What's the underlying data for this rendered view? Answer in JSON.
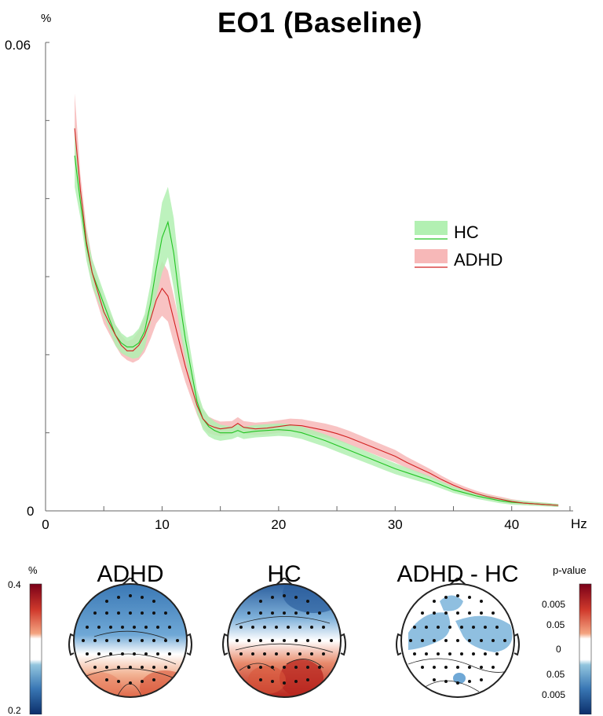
{
  "chart_data": {
    "type": "line",
    "title": "EO1 (Baseline)",
    "ylabel": "%",
    "xlabel": "Hz",
    "xlim": [
      0,
      45
    ],
    "ylim": [
      0,
      0.06
    ],
    "x_ticks": [
      "0",
      "10",
      "20",
      "30",
      "40"
    ],
    "y_tick_labels": [
      "0.06",
      "0"
    ],
    "legend_placement": "right",
    "series": [
      {
        "name": "HC",
        "color": "#22c422",
        "band_color": "#b2f0b2",
        "points": [
          [
            2.5,
            0.0455
          ],
          [
            3,
            0.0395
          ],
          [
            3.5,
            0.034
          ],
          [
            4,
            0.0305
          ],
          [
            4.5,
            0.0285
          ],
          [
            5,
            0.0265
          ],
          [
            5.5,
            0.0245
          ],
          [
            6,
            0.0225
          ],
          [
            6.5,
            0.0215
          ],
          [
            7,
            0.021
          ],
          [
            7.5,
            0.021
          ],
          [
            8,
            0.0215
          ],
          [
            8.5,
            0.023
          ],
          [
            9,
            0.0265
          ],
          [
            9.5,
            0.031
          ],
          [
            10,
            0.035
          ],
          [
            10.5,
            0.037
          ],
          [
            11,
            0.033
          ],
          [
            11.5,
            0.027
          ],
          [
            12,
            0.022
          ],
          [
            12.5,
            0.018
          ],
          [
            13,
            0.014
          ],
          [
            13.5,
            0.0118
          ],
          [
            14,
            0.0108
          ],
          [
            14.5,
            0.0103
          ],
          [
            15,
            0.01
          ],
          [
            16,
            0.01
          ],
          [
            16.5,
            0.0103
          ],
          [
            17,
            0.01
          ],
          [
            18,
            0.0102
          ],
          [
            19,
            0.0103
          ],
          [
            20,
            0.0104
          ],
          [
            21,
            0.0103
          ],
          [
            22,
            0.01
          ],
          [
            23,
            0.0095
          ],
          [
            24,
            0.009
          ],
          [
            25,
            0.0084
          ],
          [
            26,
            0.0078
          ],
          [
            27,
            0.0072
          ],
          [
            28,
            0.0066
          ],
          [
            29,
            0.006
          ],
          [
            30,
            0.0054
          ],
          [
            31,
            0.0049
          ],
          [
            32,
            0.0044
          ],
          [
            33,
            0.0039
          ],
          [
            34,
            0.0033
          ],
          [
            35,
            0.0027
          ],
          [
            36,
            0.0023
          ],
          [
            37,
            0.0019
          ],
          [
            38,
            0.0016
          ],
          [
            39,
            0.0013
          ],
          [
            40,
            0.0011
          ],
          [
            41,
            0.001
          ],
          [
            42,
            0.0009
          ],
          [
            43,
            0.0008
          ],
          [
            44,
            0.0007
          ]
        ],
        "band": [
          [
            2.5,
            0.004
          ],
          [
            3,
            0.002
          ],
          [
            5,
            0.0015
          ],
          [
            7,
            0.0012
          ],
          [
            9,
            0.0025
          ],
          [
            10,
            0.0045
          ],
          [
            11,
            0.0045
          ],
          [
            12,
            0.0025
          ],
          [
            13,
            0.0015
          ],
          [
            16,
            0.0008
          ],
          [
            20,
            0.0008
          ],
          [
            25,
            0.0008
          ],
          [
            30,
            0.0007
          ],
          [
            35,
            0.0004
          ],
          [
            40,
            0.0003
          ],
          [
            44,
            0.0002
          ]
        ]
      },
      {
        "name": "ADHD",
        "color": "#d22020",
        "band_color": "#f7b8b8",
        "points": [
          [
            2.5,
            0.049
          ],
          [
            3,
            0.041
          ],
          [
            3.5,
            0.0345
          ],
          [
            4,
            0.0305
          ],
          [
            4.5,
            0.028
          ],
          [
            5,
            0.0255
          ],
          [
            5.5,
            0.024
          ],
          [
            6,
            0.0225
          ],
          [
            6.5,
            0.0212
          ],
          [
            7,
            0.0205
          ],
          [
            7.5,
            0.0205
          ],
          [
            8,
            0.0212
          ],
          [
            8.5,
            0.0225
          ],
          [
            9,
            0.0245
          ],
          [
            9.5,
            0.027
          ],
          [
            10,
            0.0285
          ],
          [
            10.5,
            0.0275
          ],
          [
            11,
            0.0245
          ],
          [
            11.5,
            0.0215
          ],
          [
            12,
            0.0185
          ],
          [
            12.5,
            0.016
          ],
          [
            13,
            0.0135
          ],
          [
            13.5,
            0.0118
          ],
          [
            14,
            0.011
          ],
          [
            14.5,
            0.0107
          ],
          [
            15,
            0.0105
          ],
          [
            16,
            0.0107
          ],
          [
            16.5,
            0.0112
          ],
          [
            17,
            0.0107
          ],
          [
            18,
            0.0105
          ],
          [
            19,
            0.0106
          ],
          [
            20,
            0.0108
          ],
          [
            21,
            0.011
          ],
          [
            22,
            0.0109
          ],
          [
            23,
            0.0106
          ],
          [
            24,
            0.0103
          ],
          [
            25,
            0.0099
          ],
          [
            26,
            0.0094
          ],
          [
            27,
            0.0088
          ],
          [
            28,
            0.0082
          ],
          [
            29,
            0.0076
          ],
          [
            30,
            0.007
          ],
          [
            31,
            0.0062
          ],
          [
            32,
            0.0055
          ],
          [
            33,
            0.0048
          ],
          [
            34,
            0.004
          ],
          [
            35,
            0.0033
          ],
          [
            36,
            0.0027
          ],
          [
            37,
            0.0022
          ],
          [
            38,
            0.0018
          ],
          [
            39,
            0.0015
          ],
          [
            40,
            0.0012
          ],
          [
            41,
            0.001
          ],
          [
            42,
            0.0009
          ],
          [
            43,
            0.0008
          ],
          [
            44,
            0.0007
          ]
        ],
        "band": [
          [
            2.5,
            0.0045
          ],
          [
            3,
            0.002
          ],
          [
            5,
            0.0015
          ],
          [
            7,
            0.0012
          ],
          [
            9,
            0.0025
          ],
          [
            10,
            0.0035
          ],
          [
            11,
            0.003
          ],
          [
            12,
            0.002
          ],
          [
            13,
            0.0012
          ],
          [
            16,
            0.0008
          ],
          [
            20,
            0.0008
          ],
          [
            25,
            0.0009
          ],
          [
            30,
            0.0008
          ],
          [
            35,
            0.0004
          ],
          [
            40,
            0.0003
          ],
          [
            44,
            0.0002
          ]
        ]
      }
    ]
  },
  "topomaps": {
    "left_colorbar": {
      "unit": "%",
      "top_label": "0.4",
      "bottom_label": "0.2"
    },
    "right_colorbar": {
      "unit": "p-value",
      "labels": [
        "0.005",
        "0.05",
        "0",
        "0.05",
        "0.005"
      ]
    },
    "maps": [
      {
        "title": "ADHD"
      },
      {
        "title": "HC"
      },
      {
        "title": "ADHD - HC"
      }
    ]
  }
}
